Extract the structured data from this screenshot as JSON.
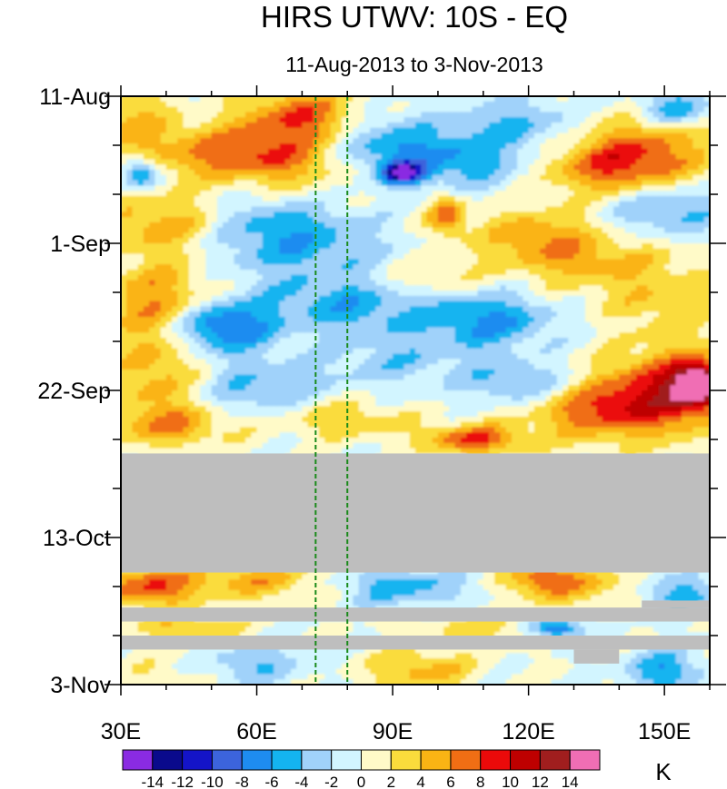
{
  "chart_data": {
    "type": "heatmap",
    "title": "HIRS UTWV: 10S - EQ",
    "subtitle": "11-Aug-2013 to 3-Nov-2013",
    "x_axis": {
      "label": "",
      "range": [
        30,
        160
      ],
      "units": "degrees east",
      "ticks": [
        {
          "value": 30,
          "label": "30E"
        },
        {
          "value": 60,
          "label": "60E"
        },
        {
          "value": 90,
          "label": "90E"
        },
        {
          "value": 120,
          "label": "120E"
        },
        {
          "value": 150,
          "label": "150E"
        }
      ],
      "minor_tick_step": 10
    },
    "y_axis": {
      "label": "",
      "range_days": [
        0,
        84
      ],
      "direction": "time increases downward",
      "ticks": [
        {
          "day": 0,
          "label": "11-Aug"
        },
        {
          "day": 21,
          "label": "1-Sep"
        },
        {
          "day": 42,
          "label": "22-Sep"
        },
        {
          "day": 63,
          "label": "13-Oct"
        },
        {
          "day": 84,
          "label": "3-Nov"
        }
      ],
      "minor_tick_step_days": 7
    },
    "reference_lines": [
      {
        "lon": 73,
        "style": "dashed",
        "color": "#1a8a1a"
      },
      {
        "lon": 80,
        "style": "dashed",
        "color": "#1a8a1a"
      }
    ],
    "missing_bands": [
      {
        "lon": [
          30,
          160
        ],
        "days": [
          51,
          68
        ]
      },
      {
        "lon": [
          30,
          160
        ],
        "days": [
          73,
          75
        ]
      },
      {
        "lon": [
          145,
          160
        ],
        "days": [
          72,
          73
        ]
      },
      {
        "lon": [
          30,
          160
        ],
        "days": [
          77,
          79
        ]
      },
      {
        "lon": [
          130,
          140
        ],
        "days": [
          79,
          81
        ]
      }
    ],
    "colorbar": {
      "units": "K",
      "levels": [
        -14,
        -12,
        -10,
        -8,
        -6,
        -4,
        -2,
        0,
        2,
        4,
        6,
        8,
        10,
        12,
        14
      ],
      "tick_labels": [
        "-14",
        "-12",
        "-10",
        "-8",
        "-6",
        "-4",
        "-2",
        "0",
        "2",
        "4",
        "6",
        "8",
        "10",
        "12",
        "14"
      ],
      "colors": [
        "#8a2be2",
        "#0a0a8c",
        "#1414c8",
        "#3c64dc",
        "#1e8cf0",
        "#14b4f0",
        "#a0d2fa",
        "#d2f5ff",
        "#fffac8",
        "#fadc3c",
        "#fab414",
        "#f06e14",
        "#eb0a0a",
        "#be0000",
        "#a01e1e",
        "#f06eb4"
      ]
    },
    "missing_color": "#bebebe"
  }
}
